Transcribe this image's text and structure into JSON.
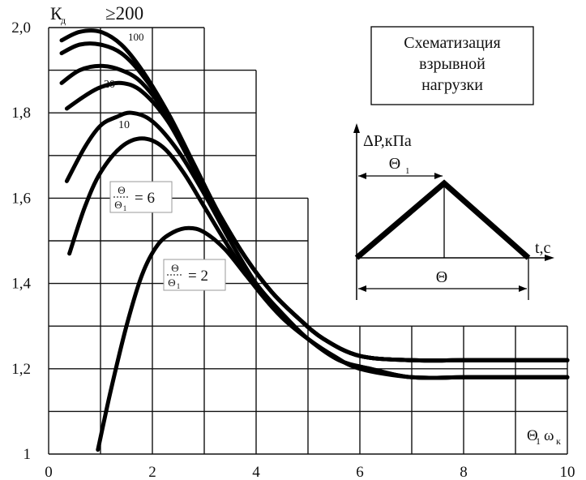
{
  "chart_data": {
    "type": "line",
    "xlabel": "Θ1 ωк",
    "ylabel": "Кд",
    "xlim": [
      0,
      10
    ],
    "ylim": [
      1.0,
      2.0
    ],
    "xticks": [
      "0",
      "2",
      "4",
      "6",
      "8",
      "10"
    ],
    "yticks": [
      "1",
      "1,2",
      "1,4",
      "1,6",
      "1,8",
      "2,0"
    ],
    "grid": "on (stepped region)",
    "series": [
      {
        "name": "≥200",
        "x": [
          0.25,
          0.6,
          1.0,
          1.4,
          1.8,
          2.3,
          2.8,
          3.3,
          3.8,
          4.3,
          4.8,
          5.3,
          6.0,
          7.0,
          8.0,
          9.0,
          10.0
        ],
        "y": [
          1.97,
          1.99,
          1.99,
          1.96,
          1.9,
          1.8,
          1.68,
          1.56,
          1.46,
          1.38,
          1.32,
          1.27,
          1.23,
          1.22,
          1.22,
          1.22,
          1.22
        ]
      },
      {
        "name": "100",
        "x": [
          0.25,
          0.6,
          1.0,
          1.4,
          1.8,
          2.3,
          2.8,
          3.3,
          3.8,
          4.3,
          4.8,
          5.3,
          6.0,
          7.0,
          8.0,
          9.0,
          10.0
        ],
        "y": [
          1.94,
          1.96,
          1.96,
          1.94,
          1.89,
          1.8,
          1.68,
          1.56,
          1.46,
          1.38,
          1.32,
          1.27,
          1.23,
          1.22,
          1.22,
          1.22,
          1.22
        ]
      },
      {
        "name": "",
        "x": [
          0.25,
          0.6,
          1.0,
          1.4,
          1.8,
          2.3,
          2.8,
          3.3,
          3.8,
          4.3,
          4.8,
          5.3,
          6.0,
          7.0,
          8.0,
          9.0,
          10.0
        ],
        "y": [
          1.87,
          1.9,
          1.91,
          1.9,
          1.87,
          1.79,
          1.67,
          1.56,
          1.46,
          1.38,
          1.32,
          1.27,
          1.23,
          1.22,
          1.22,
          1.22,
          1.22
        ]
      },
      {
        "name": "20",
        "x": [
          0.35,
          0.7,
          1.0,
          1.4,
          1.8,
          2.3,
          2.8,
          3.3,
          3.8,
          4.3,
          4.8,
          5.3,
          6.0,
          7.0,
          8.0,
          9.0,
          10.0
        ],
        "y": [
          1.81,
          1.84,
          1.86,
          1.87,
          1.85,
          1.78,
          1.67,
          1.56,
          1.46,
          1.38,
          1.32,
          1.27,
          1.23,
          1.22,
          1.22,
          1.22,
          1.22
        ]
      },
      {
        "name": "10",
        "x": [
          0.35,
          0.7,
          1.0,
          1.3,
          1.6,
          2.0,
          2.5,
          3.0,
          3.5,
          4.0,
          4.5,
          5.0,
          5.6,
          6.2,
          7.0,
          8.0,
          9.0,
          10.0
        ],
        "y": [
          1.64,
          1.72,
          1.77,
          1.79,
          1.8,
          1.78,
          1.71,
          1.61,
          1.5,
          1.4,
          1.33,
          1.27,
          1.22,
          1.2,
          1.18,
          1.18,
          1.18,
          1.18
        ]
      },
      {
        "name": "Θ/Θ1 = 6",
        "x": [
          0.4,
          0.7,
          1.0,
          1.4,
          1.8,
          2.2,
          2.6,
          3.0,
          3.5,
          4.0,
          4.5,
          5.0,
          5.6,
          6.2,
          7.0,
          8.0,
          9.0,
          10.0
        ],
        "y": [
          1.47,
          1.58,
          1.66,
          1.72,
          1.74,
          1.72,
          1.66,
          1.58,
          1.48,
          1.39,
          1.32,
          1.27,
          1.22,
          1.2,
          1.18,
          1.18,
          1.18,
          1.18
        ]
      },
      {
        "name": "Θ/Θ1 = 2",
        "x": [
          0.95,
          1.2,
          1.5,
          1.8,
          2.1,
          2.4,
          2.7,
          3.0,
          3.4,
          3.8,
          4.2,
          4.6,
          5.0,
          5.5,
          6.0,
          7.0,
          8.0,
          9.0,
          10.0
        ],
        "y": [
          1.01,
          1.15,
          1.3,
          1.42,
          1.49,
          1.52,
          1.53,
          1.52,
          1.48,
          1.42,
          1.36,
          1.31,
          1.27,
          1.23,
          1.2,
          1.18,
          1.18,
          1.18,
          1.18
        ]
      }
    ],
    "annotations": {
      "schema_title": [
        "Схематизация",
        "взрывной",
        "нагрузки"
      ],
      "inset_ylabel": "ΔP,кПа",
      "inset_xlabel": "t,c",
      "inset_theta1": "Θ1",
      "inset_theta": "Θ",
      "frac6": {
        "num": "Θ",
        "den": "Θ1",
        "rhs": "= 6"
      },
      "frac2": {
        "num": "Θ",
        "den": "Θ1",
        "rhs": "= 2"
      }
    }
  }
}
